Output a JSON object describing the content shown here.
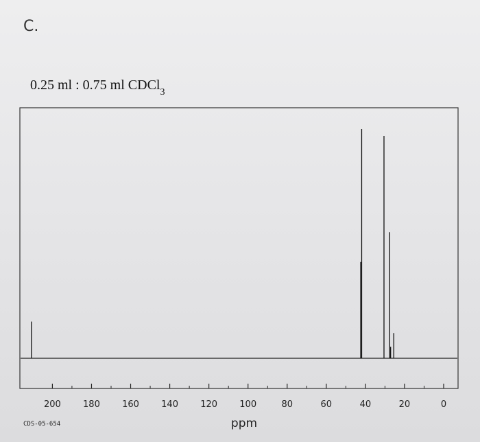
{
  "header": {
    "section_label": "C.",
    "conc_text": "0.25 ml : 0.75 ml CDCl",
    "conc_subscript": "3"
  },
  "footer": {
    "code": "CDS-05-654"
  },
  "chart_data": {
    "type": "line",
    "title": "",
    "xlabel": "ppm",
    "ylabel": "",
    "xlim": [
      210,
      0
    ],
    "x_reversed": true,
    "ticks": [
      200,
      180,
      160,
      140,
      120,
      100,
      80,
      60,
      40,
      20,
      0
    ],
    "tick_labels": [
      "200",
      "180",
      "160",
      "140",
      "120",
      "100",
      "80",
      "60",
      "40",
      "20",
      "0"
    ],
    "grid": false,
    "baseline": 0,
    "ylim": [
      0,
      100
    ],
    "series": [
      {
        "values": [
          {
            "x": 210.7,
            "y": 16
          },
          {
            "x": 42.4,
            "y": 42
          },
          {
            "x": 41.9,
            "y": 100
          },
          {
            "x": 30.5,
            "y": 97
          },
          {
            "x": 27.6,
            "y": 55
          },
          {
            "x": 27.1,
            "y": 5
          },
          {
            "x": 25.5,
            "y": 11
          }
        ]
      }
    ]
  }
}
